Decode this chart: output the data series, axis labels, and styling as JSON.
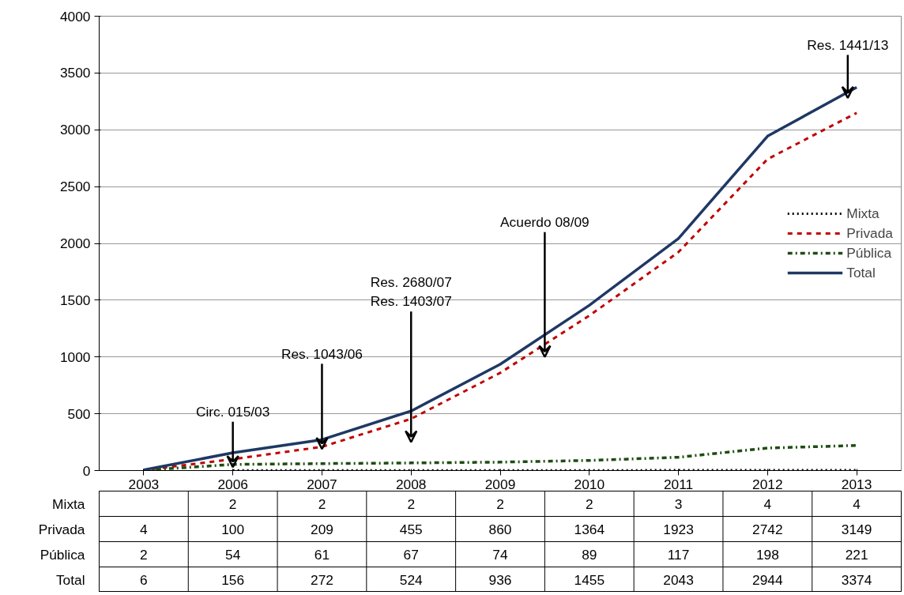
{
  "chart_data": {
    "type": "line",
    "categories": [
      "2003",
      "2006",
      "2007",
      "2008",
      "2009",
      "2010",
      "2011",
      "2012",
      "2013"
    ],
    "series": [
      {
        "name": "Mixta",
        "color": "#000000",
        "line_style": "dotted",
        "values": [
          null,
          2,
          2,
          2,
          2,
          2,
          3,
          4,
          4
        ]
      },
      {
        "name": "Privada",
        "color": "#c00000",
        "line_style": "dashed",
        "values": [
          4,
          100,
          209,
          455,
          860,
          1364,
          1923,
          2742,
          3149
        ]
      },
      {
        "name": "Pública",
        "color": "#1e4d12",
        "line_style": "dashdot",
        "values": [
          2,
          54,
          61,
          67,
          74,
          89,
          117,
          198,
          221
        ]
      },
      {
        "name": "Total",
        "color": "#1f3864",
        "line_style": "solid",
        "values": [
          6,
          156,
          272,
          524,
          936,
          1455,
          2043,
          2944,
          3374
        ]
      }
    ],
    "ylim": [
      0,
      4000
    ],
    "yticks": [
      0,
      500,
      1000,
      1500,
      2000,
      2500,
      3000,
      3500,
      4000
    ],
    "grid": "y",
    "legend": "right",
    "marker": "none",
    "data_labels": true,
    "annotations": [
      {
        "text": "Circ. 015/03",
        "x": "2006",
        "y": 30
      },
      {
        "text": "Res. 1043/06",
        "x": "2007",
        "y": 190
      },
      "Res. 2680/07\nRes. 1403/07",
      "Acuerdo 08/09",
      "Res. 1441/13"
    ]
  }
}
